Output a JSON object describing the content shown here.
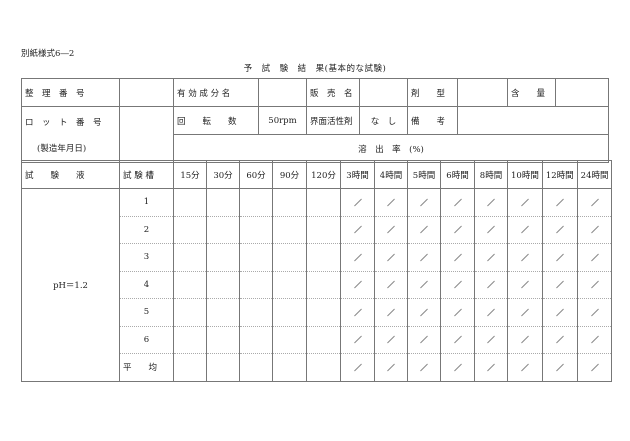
{
  "form_id": "別紙様式6―2",
  "title": "予　試　験　結　果(基本的な試験)",
  "row1": {
    "control_number_label": "整　理　番　号",
    "active_ingredient_label": "有 効 成 分 名",
    "brand_name_label": "販　売　名",
    "dosage_form_label": "剤　　型",
    "content_label": "含　　量"
  },
  "row2": {
    "lot_number_label": "ロ　ッ　ト　番　号",
    "manufacture_date_label": "(製造年月日)",
    "rotation_label": "回　　転　　数",
    "rotation_value": "50rpm",
    "surfactant_label": "界面活性剤",
    "surfactant_value": "な　し",
    "remarks_label": "備　　考"
  },
  "dissolution_rate_label": "溶　出　率　(%)",
  "header": {
    "test_solution_label": "試　　験　　液",
    "vessel_label": "試 験 槽",
    "times": [
      "15分",
      "30分",
      "60分",
      "90分",
      "120分",
      "3時間",
      "4時間",
      "5時間",
      "6時間",
      "8時間",
      "10時間",
      "12時間",
      "24時間"
    ]
  },
  "test_solution_value": "pH＝1.2",
  "vessels": [
    "1",
    "2",
    "3",
    "4",
    "5",
    "6"
  ],
  "average_label": "平　　均",
  "slashed_from_time_index": 5
}
